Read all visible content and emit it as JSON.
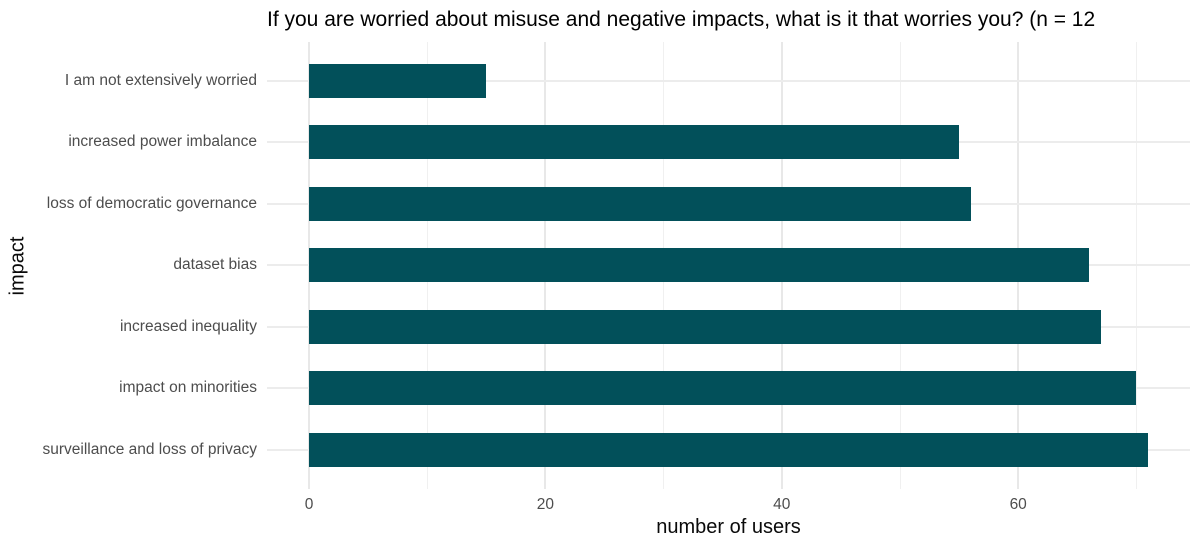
{
  "title": "If you are worried about misuse and negative impacts, what is it that worries you? (n = 12",
  "axes": {
    "x_label": "number of users",
    "y_label": "impact"
  },
  "chart_data": {
    "type": "bar",
    "orientation": "horizontal",
    "title": "If you are worried about misuse and negative impacts, what is it that worries you? (n = 12",
    "xlabel": "number of users",
    "ylabel": "impact",
    "categories": [
      "I am not extensively worried",
      "increased power imbalance",
      "loss of democratic governance",
      "dataset bias",
      "increased inequality",
      "impact on minorities",
      "surveillance and loss of privacy"
    ],
    "values": [
      15,
      55,
      56,
      66,
      67,
      70,
      71
    ],
    "xlim": [
      0,
      74.5
    ],
    "x_major_ticks": [
      0,
      20,
      40,
      60
    ],
    "x_minor_gridlines": [
      10,
      30,
      50,
      70
    ],
    "grid": "major-and-minor-on-white",
    "legend": "none",
    "bar_color": "#02505a"
  },
  "colors": {
    "bar": "#02505a",
    "grid_major": "#e8e8e8",
    "grid_minor": "#f0f0f0",
    "grid_horizontal": "#ececec",
    "axis_tick_text": "#4d4d4d",
    "axis_title_text": "#0a0a0a",
    "title_text": "#000000",
    "background": "#ffffff"
  }
}
